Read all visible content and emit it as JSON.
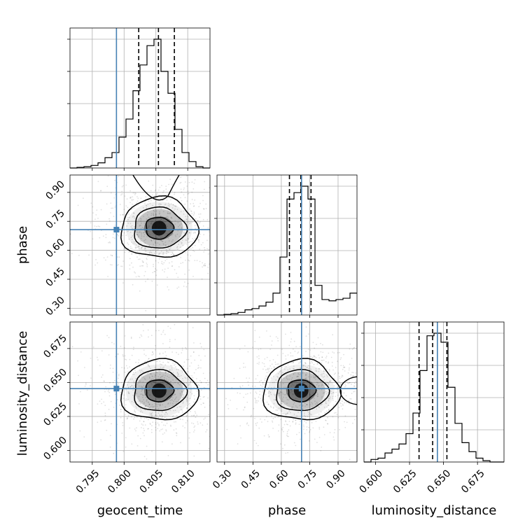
{
  "chart_data": {
    "type": "corner",
    "parameters": [
      "geocent_time",
      "phase",
      "luminosity_distance"
    ],
    "truths": {
      "geocent_time": 0.7988,
      "phase": 0.707,
      "luminosity_distance": 0.6455
    },
    "truth_color": "#4682b4",
    "grid": true,
    "panels": [
      {
        "row": 0,
        "col": 0,
        "kind": "histogram",
        "param": "geocent_time",
        "xlim": [
          0.7915,
          0.8135
        ],
        "bins": [
          0.7915,
          0.7926,
          0.7937,
          0.7948,
          0.7959,
          0.797,
          0.7981,
          0.7992,
          0.8003,
          0.8014,
          0.8025,
          0.8036,
          0.8047,
          0.8058,
          0.8069,
          0.808,
          0.8091,
          0.8102,
          0.8113,
          0.8124,
          0.8135
        ],
        "counts": [
          0,
          0.5,
          1,
          2,
          4,
          8,
          12,
          24,
          38,
          60,
          80,
          95,
          100,
          75,
          58,
          30,
          12,
          5,
          1,
          0
        ],
        "quantiles": [
          0.8023,
          0.8054,
          0.8079
        ],
        "xticks": [
          "0.795",
          "0.800",
          "0.805",
          "0.810"
        ]
      },
      {
        "row": 1,
        "col": 0,
        "kind": "2d",
        "x": "geocent_time",
        "y": "phase",
        "xlim": [
          0.7915,
          0.8135
        ],
        "ylim": [
          0.265,
          0.99
        ],
        "yticks": [
          "0.30",
          "0.45",
          "0.60",
          "0.75",
          "0.90"
        ],
        "density_peak": {
          "x": 0.8055,
          "y": 0.715
        }
      },
      {
        "row": 1,
        "col": 1,
        "kind": "histogram",
        "param": "phase",
        "xlim": [
          0.26,
          1.0
        ],
        "bins": [
          0.26,
          0.297,
          0.334,
          0.371,
          0.408,
          0.445,
          0.482,
          0.519,
          0.556,
          0.593,
          0.63,
          0.667,
          0.704,
          0.741,
          0.778,
          0.815,
          0.852,
          0.889,
          0.926,
          0.963,
          1.0
        ],
        "counts": [
          0,
          0.5,
          1,
          2,
          4,
          5,
          7,
          10,
          17,
          45,
          90,
          95,
          100,
          90,
          23,
          12,
          11,
          12,
          13,
          17
        ],
        "quantiles": [
          0.643,
          0.703,
          0.757
        ]
      },
      {
        "row": 2,
        "col": 0,
        "kind": "2d",
        "x": "geocent_time",
        "y": "luminosity_distance",
        "xlim": [
          0.7915,
          0.8135
        ],
        "ylim": [
          0.5915,
          0.6945
        ],
        "yticks": [
          "0.600",
          "0.625",
          "0.650",
          "0.675"
        ],
        "xticks": [
          "0.795",
          "0.800",
          "0.805",
          "0.810"
        ],
        "density_peak": {
          "x": 0.8055,
          "y": 0.644
        }
      },
      {
        "row": 2,
        "col": 1,
        "kind": "2d",
        "x": "phase",
        "y": "luminosity_distance",
        "xlim": [
          0.26,
          1.0
        ],
        "ylim": [
          0.5915,
          0.6945
        ],
        "xticks": [
          "0.30",
          "0.45",
          "0.60",
          "0.75",
          "0.90"
        ],
        "density_peak": {
          "x": 0.705,
          "y": 0.644
        }
      },
      {
        "row": 2,
        "col": 2,
        "kind": "histogram",
        "param": "luminosity_distance",
        "xlim": [
          0.5915,
          0.6945
        ],
        "bins": [
          0.5915,
          0.59665,
          0.6018,
          0.60695,
          0.6121,
          0.61725,
          0.6224,
          0.62755,
          0.6327,
          0.63785,
          0.643,
          0.64815,
          0.6533,
          0.65845,
          0.6636,
          0.66875,
          0.6739,
          0.67905,
          0.6842,
          0.68935,
          0.6945
        ],
        "counts": [
          0,
          2,
          3,
          7,
          10,
          14,
          22,
          38,
          71,
          98,
          100,
          93,
          58,
          30,
          15,
          8,
          3,
          1,
          0,
          0
        ],
        "quantiles": [
          0.632,
          0.642,
          0.6525
        ],
        "xticks": [
          "0.600",
          "0.625",
          "0.650",
          "0.675"
        ]
      }
    ],
    "xlabels": [
      "geocent_time",
      "phase",
      "luminosity_distance"
    ],
    "ylabels": [
      "",
      "phase",
      "luminosity_distance"
    ]
  }
}
